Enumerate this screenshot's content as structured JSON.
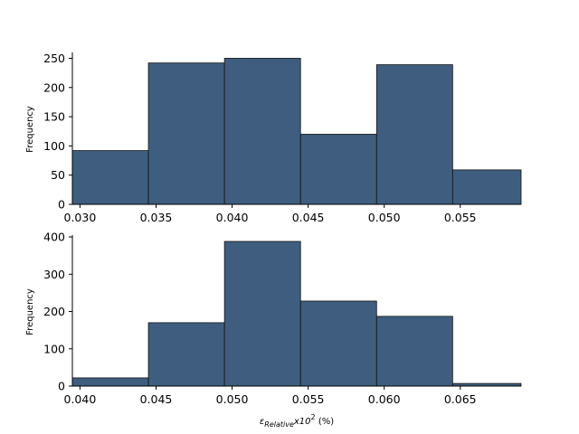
{
  "chart_data": [
    {
      "type": "histogram",
      "ylabel": "Frequency",
      "xlabel": "",
      "xlim": [
        0.0295,
        0.059
      ],
      "ylim": [
        0,
        260
      ],
      "xticks": [
        "0.030",
        "0.035",
        "0.040",
        "0.045",
        "0.050",
        "0.055"
      ],
      "xtick_values": [
        0.03,
        0.035,
        0.04,
        0.045,
        0.05,
        0.055
      ],
      "yticks": [
        0,
        50,
        100,
        150,
        200,
        250
      ],
      "bins": [
        {
          "x0": 0.0295,
          "x1": 0.0345,
          "value": 92
        },
        {
          "x0": 0.0345,
          "x1": 0.0395,
          "value": 242
        },
        {
          "x0": 0.0395,
          "x1": 0.0445,
          "value": 250
        },
        {
          "x0": 0.0445,
          "x1": 0.0495,
          "value": 120
        },
        {
          "x0": 0.0495,
          "x1": 0.0545,
          "value": 239
        },
        {
          "x0": 0.0545,
          "x1": 0.0595,
          "value": 59
        }
      ]
    },
    {
      "type": "histogram",
      "ylabel": "Frequency",
      "xlabel": "ε_Relative x10² (%)",
      "xlim": [
        0.0395,
        0.069
      ],
      "ylim": [
        0,
        405
      ],
      "xticks": [
        "0.040",
        "0.045",
        "0.050",
        "0.055",
        "0.060",
        "0.065"
      ],
      "xtick_values": [
        0.04,
        0.045,
        0.05,
        0.055,
        0.06,
        0.065
      ],
      "yticks": [
        0,
        100,
        200,
        300,
        400
      ],
      "bins": [
        {
          "x0": 0.0395,
          "x1": 0.0445,
          "value": 22
        },
        {
          "x0": 0.0445,
          "x1": 0.0495,
          "value": 170
        },
        {
          "x0": 0.0495,
          "x1": 0.0545,
          "value": 388
        },
        {
          "x0": 0.0545,
          "x1": 0.0595,
          "value": 228
        },
        {
          "x0": 0.0595,
          "x1": 0.0645,
          "value": 187
        },
        {
          "x0": 0.0645,
          "x1": 0.0695,
          "value": 7
        }
      ]
    }
  ],
  "colors": {
    "bar_fill": "#3f5e7f",
    "bar_edge": "#111111",
    "axis": "#000000"
  },
  "xlabel_parts": {
    "epsilon": "ε",
    "subscript": "Relative",
    "times": "x10",
    "superscript": "2",
    "unit": " (%)"
  }
}
